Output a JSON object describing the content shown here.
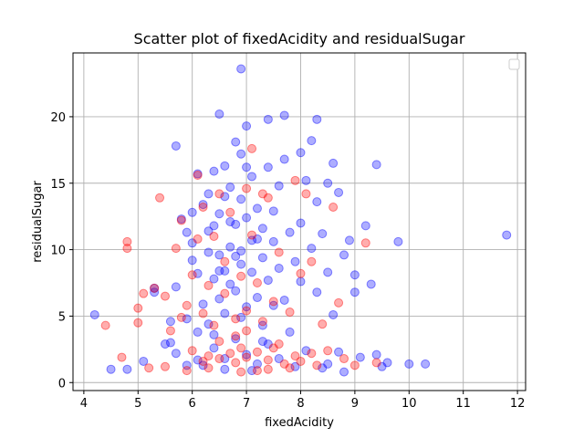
{
  "chart_data": {
    "type": "scatter",
    "title": "Scatter plot of fixedAcidity and residualSugar",
    "xlabel": "fixedAcidity",
    "ylabel": "residualSugar",
    "xlim": [
      3.8,
      12.15
    ],
    "ylim": [
      -0.6,
      24.8
    ],
    "xticks": [
      4,
      5,
      6,
      7,
      8,
      9,
      10,
      11,
      12
    ],
    "yticks": [
      0,
      5,
      10,
      15,
      20
    ],
    "grid": true,
    "legend": "top-right",
    "colors": {
      "blue": "#0000ff",
      "red": "#ff0000"
    },
    "series": [
      {
        "color": "#0000ff",
        "points": [
          [
            4.2,
            5.1
          ],
          [
            4.5,
            1.0
          ],
          [
            4.8,
            1.0
          ],
          [
            5.1,
            1.6
          ],
          [
            5.3,
            6.8
          ],
          [
            5.3,
            7.1
          ],
          [
            5.5,
            2.9
          ],
          [
            5.6,
            3.0
          ],
          [
            5.6,
            4.6
          ],
          [
            5.7,
            17.8
          ],
          [
            5.7,
            7.2
          ],
          [
            5.8,
            12.3
          ],
          [
            5.9,
            4.8
          ],
          [
            5.9,
            11.3
          ],
          [
            6.0,
            9.2
          ],
          [
            6.0,
            12.8
          ],
          [
            6.0,
            10.5
          ],
          [
            6.1,
            15.7
          ],
          [
            6.1,
            3.8
          ],
          [
            6.1,
            8.2
          ],
          [
            6.2,
            13.4
          ],
          [
            6.2,
            5.9
          ],
          [
            6.2,
            1.3
          ],
          [
            6.3,
            9.8
          ],
          [
            6.3,
            11.4
          ],
          [
            6.3,
            14.2
          ],
          [
            6.4,
            7.8
          ],
          [
            6.4,
            2.6
          ],
          [
            6.4,
            15.9
          ],
          [
            6.4,
            11.8
          ],
          [
            6.5,
            20.2
          ],
          [
            6.5,
            6.3
          ],
          [
            6.5,
            9.6
          ],
          [
            6.5,
            12.7
          ],
          [
            6.6,
            16.3
          ],
          [
            6.6,
            5.2
          ],
          [
            6.6,
            8.4
          ],
          [
            6.6,
            1.8
          ],
          [
            6.7,
            10.2
          ],
          [
            6.7,
            14.7
          ],
          [
            6.7,
            7.4
          ],
          [
            6.8,
            18.1
          ],
          [
            6.8,
            6.9
          ],
          [
            6.8,
            11.9
          ],
          [
            6.8,
            3.3
          ],
          [
            6.9,
            8.9
          ],
          [
            6.9,
            13.8
          ],
          [
            6.9,
            17.2
          ],
          [
            6.9,
            23.6
          ],
          [
            6.9,
            9.9
          ],
          [
            7.0,
            19.3
          ],
          [
            7.0,
            5.7
          ],
          [
            7.0,
            12.4
          ],
          [
            7.0,
            2.1
          ],
          [
            7.1,
            8.3
          ],
          [
            7.1,
            15.5
          ],
          [
            7.1,
            10.7
          ],
          [
            7.2,
            6.4
          ],
          [
            7.2,
            13.1
          ],
          [
            7.2,
            1.4
          ],
          [
            7.3,
            9.4
          ],
          [
            7.3,
            11.6
          ],
          [
            7.3,
            4.3
          ],
          [
            7.4,
            16.2
          ],
          [
            7.4,
            7.7
          ],
          [
            7.4,
            19.8
          ],
          [
            7.4,
            2.9
          ],
          [
            7.5,
            10.6
          ],
          [
            7.5,
            12.9
          ],
          [
            7.6,
            14.8
          ],
          [
            7.6,
            8.6
          ],
          [
            7.7,
            20.1
          ],
          [
            7.7,
            16.8
          ],
          [
            7.7,
            6.2
          ],
          [
            7.8,
            11.3
          ],
          [
            7.8,
            3.8
          ],
          [
            7.9,
            9.1
          ],
          [
            7.9,
            1.2
          ],
          [
            8.0,
            17.3
          ],
          [
            8.0,
            12.0
          ],
          [
            8.0,
            7.6
          ],
          [
            8.1,
            15.2
          ],
          [
            8.1,
            2.4
          ],
          [
            8.2,
            18.2
          ],
          [
            8.2,
            10.1
          ],
          [
            8.3,
            19.8
          ],
          [
            8.3,
            13.6
          ],
          [
            8.3,
            6.8
          ],
          [
            8.4,
            11.2
          ],
          [
            8.4,
            1.1
          ],
          [
            8.5,
            15.0
          ],
          [
            8.5,
            8.3
          ],
          [
            8.6,
            16.5
          ],
          [
            8.6,
            5.1
          ],
          [
            8.7,
            14.3
          ],
          [
            8.7,
            2.3
          ],
          [
            8.8,
            9.6
          ],
          [
            8.8,
            0.8
          ],
          [
            8.9,
            10.7
          ],
          [
            9.0,
            8.1
          ],
          [
            9.0,
            6.8
          ],
          [
            9.1,
            1.9
          ],
          [
            9.2,
            11.8
          ],
          [
            9.3,
            7.4
          ],
          [
            9.4,
            16.4
          ],
          [
            9.4,
            2.1
          ],
          [
            9.6,
            1.5
          ],
          [
            9.8,
            10.6
          ],
          [
            10.0,
            1.4
          ],
          [
            10.3,
            1.4
          ],
          [
            11.8,
            11.1
          ],
          [
            6.6,
            14.0
          ],
          [
            6.7,
            12.1
          ],
          [
            7.0,
            16.2
          ],
          [
            6.5,
            8.4
          ],
          [
            6.8,
            9.5
          ],
          [
            7.2,
            10.8
          ],
          [
            6.3,
            4.4
          ],
          [
            7.5,
            5.8
          ],
          [
            6.1,
            1.7
          ],
          [
            6.9,
            4.9
          ],
          [
            7.3,
            3.1
          ],
          [
            7.6,
            1.8
          ],
          [
            6.4,
            3.6
          ],
          [
            6.6,
            1.0
          ],
          [
            7.1,
            0.9
          ],
          [
            5.9,
            1.3
          ],
          [
            5.7,
            2.2
          ],
          [
            8.5,
            1.4
          ],
          [
            9.5,
            1.2
          ]
        ]
      },
      {
        "color": "#ff0000",
        "points": [
          [
            4.4,
            4.3
          ],
          [
            4.7,
            1.9
          ],
          [
            4.8,
            10.1
          ],
          [
            4.8,
            10.6
          ],
          [
            5.0,
            4.5
          ],
          [
            5.0,
            5.6
          ],
          [
            5.1,
            6.7
          ],
          [
            5.2,
            1.1
          ],
          [
            5.3,
            7.1
          ],
          [
            5.4,
            13.9
          ],
          [
            5.5,
            6.5
          ],
          [
            5.6,
            3.9
          ],
          [
            5.7,
            10.1
          ],
          [
            5.8,
            4.9
          ],
          [
            5.8,
            12.2
          ],
          [
            5.9,
            5.8
          ],
          [
            6.0,
            2.4
          ],
          [
            6.0,
            8.1
          ],
          [
            6.1,
            10.8
          ],
          [
            6.1,
            15.6
          ],
          [
            6.2,
            1.6
          ],
          [
            6.2,
            5.2
          ],
          [
            6.2,
            13.2
          ],
          [
            6.3,
            2.0
          ],
          [
            6.3,
            7.3
          ],
          [
            6.4,
            11.0
          ],
          [
            6.4,
            4.3
          ],
          [
            6.5,
            14.2
          ],
          [
            6.5,
            1.8
          ],
          [
            6.6,
            6.7
          ],
          [
            6.6,
            9.1
          ],
          [
            6.7,
            2.2
          ],
          [
            6.7,
            12.8
          ],
          [
            6.8,
            1.5
          ],
          [
            6.8,
            4.8
          ],
          [
            6.9,
            8.0
          ],
          [
            6.9,
            2.6
          ],
          [
            7.0,
            14.6
          ],
          [
            7.0,
            5.4
          ],
          [
            7.0,
            1.9
          ],
          [
            7.1,
            11.1
          ],
          [
            7.1,
            17.6
          ],
          [
            7.2,
            7.5
          ],
          [
            7.2,
            2.3
          ],
          [
            7.3,
            14.2
          ],
          [
            7.3,
            4.6
          ],
          [
            7.4,
            1.7
          ],
          [
            7.4,
            13.9
          ],
          [
            7.5,
            6.1
          ],
          [
            7.5,
            2.6
          ],
          [
            7.6,
            9.8
          ],
          [
            7.7,
            1.4
          ],
          [
            7.8,
            5.3
          ],
          [
            7.9,
            2.0
          ],
          [
            7.9,
            15.2
          ],
          [
            8.0,
            1.6
          ],
          [
            8.0,
            8.2
          ],
          [
            8.1,
            14.2
          ],
          [
            8.2,
            2.2
          ],
          [
            8.2,
            9.1
          ],
          [
            8.3,
            1.3
          ],
          [
            8.4,
            4.4
          ],
          [
            8.5,
            2.4
          ],
          [
            8.6,
            13.2
          ],
          [
            8.7,
            6.0
          ],
          [
            8.8,
            1.8
          ],
          [
            9.0,
            1.3
          ],
          [
            9.2,
            10.5
          ],
          [
            9.4,
            1.5
          ],
          [
            6.5,
            3.1
          ],
          [
            6.8,
            3.5
          ],
          [
            7.0,
            3.9
          ],
          [
            7.2,
            0.9
          ],
          [
            6.3,
            1.1
          ],
          [
            6.9,
            0.8
          ],
          [
            7.4,
            1.0
          ],
          [
            7.6,
            2.9
          ],
          [
            7.8,
            1.1
          ],
          [
            5.5,
            1.2
          ],
          [
            5.9,
            0.9
          ]
        ]
      }
    ]
  }
}
